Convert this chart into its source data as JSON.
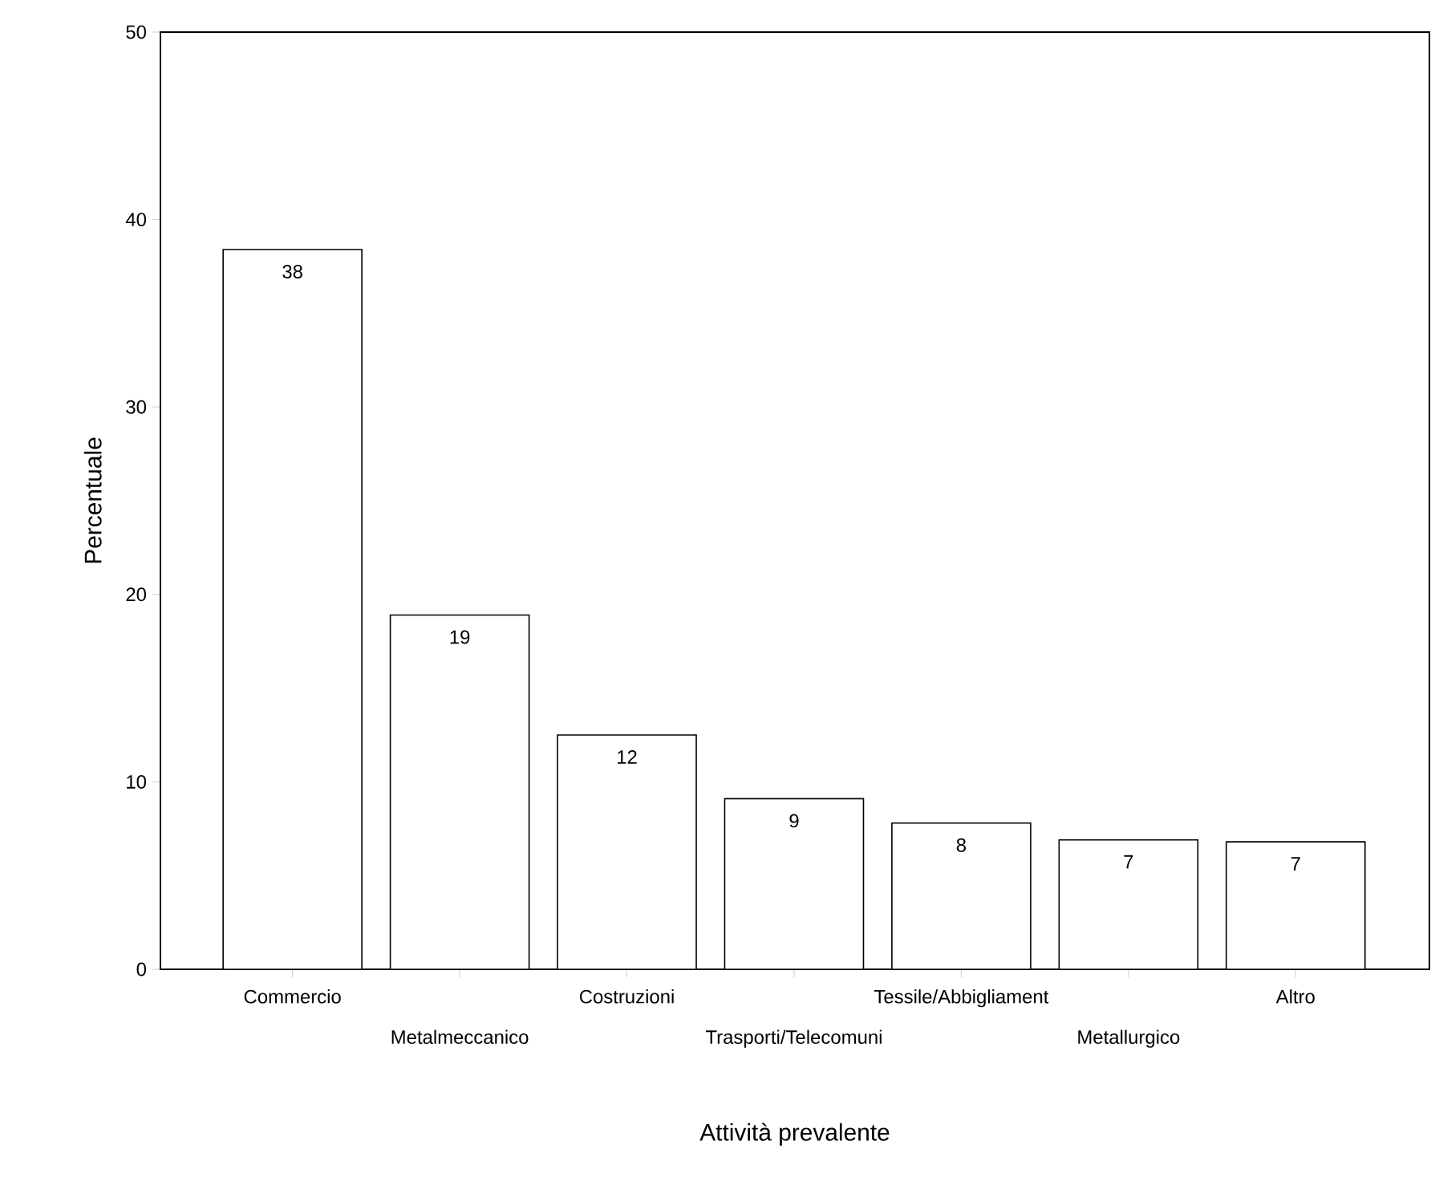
{
  "chart_data": {
    "type": "bar",
    "xlabel": "Attività prevalente",
    "ylabel": "Percentuale",
    "categories": [
      "Commercio",
      "Metalmeccanico",
      "Costruzioni",
      "Trasporti/Telecomuni",
      "Tessile/Abbigliament",
      "Metallurgico",
      "Altro"
    ],
    "values": [
      38.4,
      18.9,
      12.5,
      9.1,
      7.8,
      6.9,
      6.8
    ],
    "value_labels": [
      "38",
      "19",
      "12",
      "9",
      "8",
      "7",
      "7"
    ],
    "color": "#ffffff",
    "ylim": [
      0,
      50
    ],
    "yticks": [
      0,
      10,
      20,
      30,
      40,
      50
    ],
    "grid": false
  }
}
